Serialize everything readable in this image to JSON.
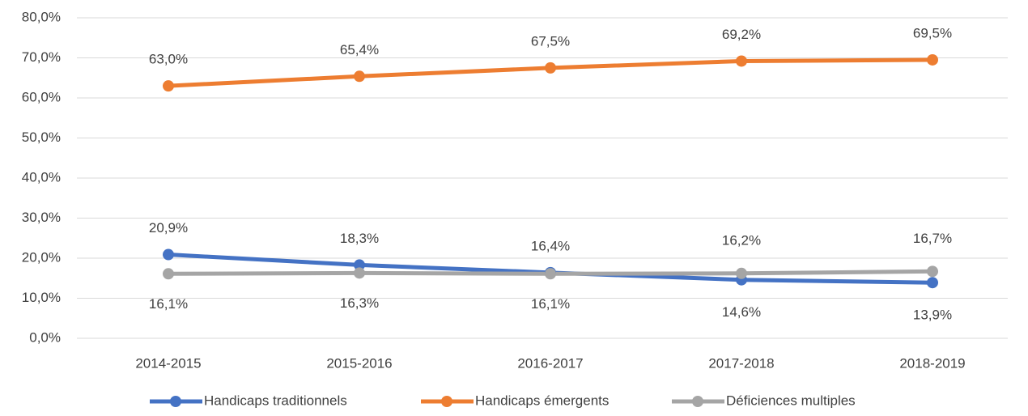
{
  "chart_data": {
    "type": "line",
    "categories": [
      "2014-2015",
      "2015-2016",
      "2016-2017",
      "2017-2018",
      "2018-2019"
    ],
    "series": [
      {
        "name": "Handicaps traditionnels",
        "color": "#4472c4",
        "values": [
          20.9,
          18.3,
          16.4,
          14.6,
          13.9
        ],
        "value_labels": [
          "20,9%",
          "18,3%",
          "16,4%",
          "14,6%",
          "13,9%"
        ]
      },
      {
        "name": "Handicaps émergents",
        "color": "#ed7d31",
        "values": [
          63.0,
          65.4,
          67.5,
          69.2,
          69.5
        ],
        "value_labels": [
          "63,0%",
          "65,4%",
          "67,5%",
          "69,2%",
          "69,5%"
        ]
      },
      {
        "name": "Déficiences multiples",
        "color": "#a5a5a5",
        "values": [
          16.1,
          16.3,
          16.1,
          16.2,
          16.7
        ],
        "value_labels": [
          "16,1%",
          "16,3%",
          "16,1%",
          "16,2%",
          "16,7%"
        ]
      }
    ],
    "ylim": [
      0,
      80
    ],
    "yticks": [
      {
        "value": 0,
        "label": "0,0%"
      },
      {
        "value": 10,
        "label": "10,0%"
      },
      {
        "value": 20,
        "label": "20,0%"
      },
      {
        "value": 30,
        "label": "30,0%"
      },
      {
        "value": 40,
        "label": "40,0%"
      },
      {
        "value": 50,
        "label": "50,0%"
      },
      {
        "value": 60,
        "label": "60,0%"
      },
      {
        "value": 70,
        "label": "70,0%"
      },
      {
        "value": 80,
        "label": "80,0%"
      }
    ],
    "grid": true,
    "legend": "bottom"
  }
}
